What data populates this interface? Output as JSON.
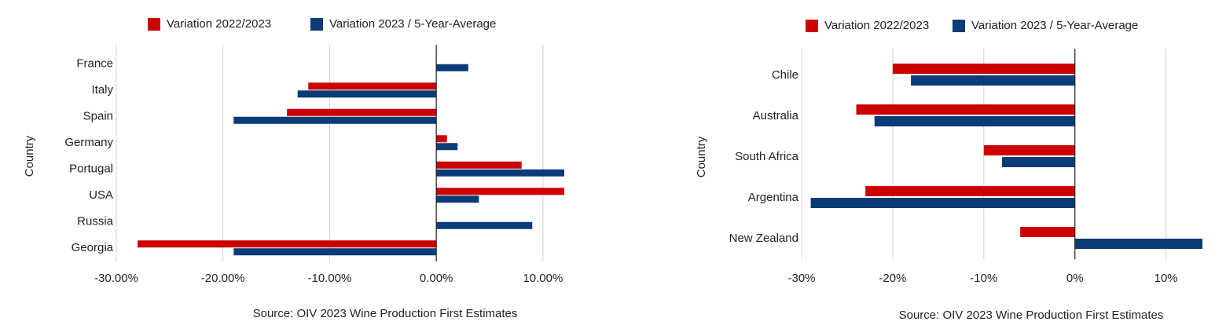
{
  "chart_data": [
    {
      "type": "barh",
      "ylabel": "Country",
      "source": "Source: OIV 2023 Wine Production First Estimates",
      "categories": [
        "France",
        "Italy",
        "Spain",
        "Germany",
        "Portugal",
        "USA",
        "Russia",
        "Georgia"
      ],
      "series": [
        {
          "name": "Variation 2022/2023",
          "color": "#cc0000",
          "values": [
            null,
            -12,
            -14,
            1,
            8,
            12,
            null,
            -28
          ]
        },
        {
          "name": "Variation 2023 / 5-Year-Average",
          "color": "#0b3c78",
          "values": [
            3,
            -13,
            -19,
            2,
            12,
            4,
            9,
            -19
          ]
        }
      ],
      "xlim": [
        -30,
        12
      ],
      "xticks": [
        {
          "value": -30,
          "label": "-30.00%"
        },
        {
          "value": -20,
          "label": "-20.00%"
        },
        {
          "value": -10,
          "label": "-10.00%"
        },
        {
          "value": 0,
          "label": "0.00%"
        },
        {
          "value": 10,
          "label": "10.00%"
        }
      ],
      "grid": true
    },
    {
      "type": "barh",
      "ylabel": "Country",
      "source": "Source: OIV 2023 Wine Production First Estimates",
      "categories": [
        "Chile",
        "Australia",
        "South Africa",
        "Argentina",
        "New Zealand"
      ],
      "series": [
        {
          "name": "Variation 2022/2023",
          "color": "#cc0000",
          "values": [
            -20,
            -24,
            -10,
            -23,
            -6
          ]
        },
        {
          "name": "Variation 2023 / 5-Year-Average",
          "color": "#0b3c78",
          "values": [
            -18,
            -22,
            -8,
            -29,
            14
          ]
        }
      ],
      "xlim": [
        -30,
        14
      ],
      "xticks": [
        {
          "value": -30,
          "label": "-30%"
        },
        {
          "value": -20,
          "label": "-20%"
        },
        {
          "value": -10,
          "label": "-10%"
        },
        {
          "value": 0,
          "label": "0%"
        },
        {
          "value": 10,
          "label": "10%"
        }
      ],
      "grid": true
    }
  ]
}
